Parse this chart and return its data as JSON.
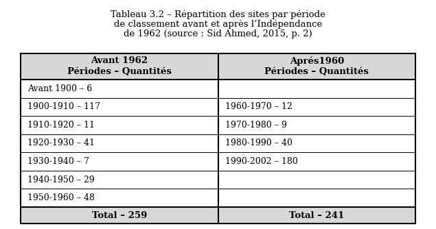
{
  "title_line1": "Tableau 3.2 – Répartition des sites par période",
  "title_line2": "de classement avant et après l’Indépendance",
  "title_line3": "de 1962 (source : Sid Ahmed, 2015, p. 2)",
  "col1_header_line1": "Avant 1962",
  "col1_header_line2": "Périodes – Quantités",
  "col2_header_line1": "Aprés1960",
  "col2_header_line2": "Périodes – Quantités",
  "col1_rows": [
    "Avant 1900 – 6",
    "1900-1910 – 117",
    "1910-1920 – 11",
    "1920-1930 – 41",
    "1930-1940 – 7",
    "1940-1950 – 29",
    "1950-1960 – 48"
  ],
  "col2_rows": [
    "",
    "1960-1970 – 12",
    "1970-1980 – 9",
    "1980-1990 – 40",
    "1990-2002 – 180",
    "",
    ""
  ],
  "col1_total": "Total – 259",
  "col2_total": "Total – 241",
  "bg_color": "#ffffff",
  "header_bg": "#d8d8d8",
  "total_bg": "#d8d8d8",
  "text_color": "#000000",
  "border_color": "#000000",
  "title_fontsize": 9.5,
  "header_fontsize": 9.5,
  "body_fontsize": 9.0,
  "total_fontsize": 9.5
}
